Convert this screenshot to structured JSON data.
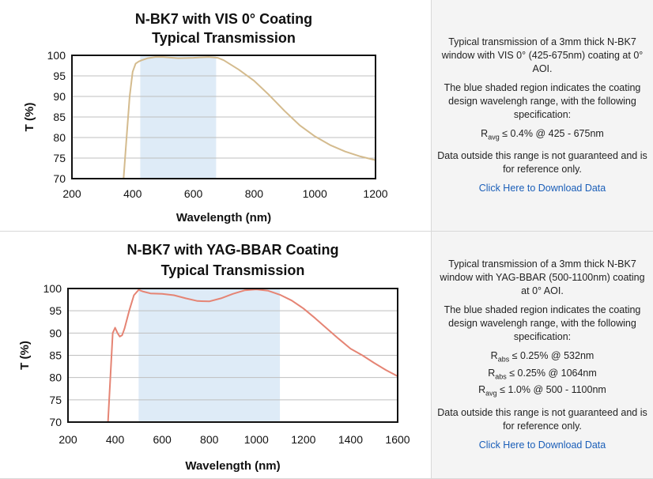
{
  "panels": [
    {
      "chart_data": {
        "type": "line",
        "title": "N-BK7 with VIS 0° Coating",
        "subtitle": "Typical Transmission",
        "xlabel": "Wavelength (nm)",
        "ylabel": "T (%)",
        "xlim": [
          200,
          1200
        ],
        "ylim": [
          70,
          100
        ],
        "xticks": [
          200,
          400,
          600,
          800,
          1000,
          1200
        ],
        "yticks": [
          70,
          75,
          80,
          85,
          90,
          95,
          100
        ],
        "grid": "horizontal",
        "shaded_region": [
          425,
          675
        ],
        "shade_color": "#deebf7",
        "line_color": "#d4bb8e",
        "series": [
          {
            "x": [
              370,
              380,
              390,
              400,
              410,
              420,
              430,
              450,
              475,
              500,
              550,
              600,
              650,
              680,
              700,
              750,
              800,
              850,
              900,
              950,
              1000,
              1050,
              1100,
              1150,
              1200
            ],
            "y": [
              70,
              80,
              90,
              96,
              98,
              98.5,
              98.8,
              99.3,
              99.6,
              99.6,
              99.3,
              99.4,
              99.6,
              99.4,
              98.8,
              96.5,
              93.8,
              90.3,
              86.5,
              83,
              80.3,
              78.2,
              76.6,
              75.4,
              74.5
            ]
          }
        ]
      },
      "description": {
        "intro": "Typical transmission of a 3mm thick N-BK7 window with VIS 0° (425-675nm) coating at 0° AOI.",
        "shaded_note": "The blue shaded region indicates the coating design wavelengh range, with the following specification:",
        "specs": [
          {
            "sym": "R",
            "sub": "avg",
            "text": " ≤ 0.4% @ 425 - 675nm"
          }
        ],
        "disclaimer": "Data outside this range is not guaranteed and is for reference only.",
        "link": "Click Here to Download Data"
      }
    },
    {
      "chart_data": {
        "type": "line",
        "title": "N-BK7 with YAG-BBAR Coating",
        "subtitle": "Typical Transmission",
        "xlabel": "Wavelength (nm)",
        "ylabel": "T (%)",
        "xlim": [
          200,
          1600
        ],
        "ylim": [
          70,
          100
        ],
        "xticks": [
          200,
          400,
          600,
          800,
          1000,
          1200,
          1400,
          1600
        ],
        "yticks": [
          70,
          75,
          80,
          85,
          90,
          95,
          100
        ],
        "grid": "horizontal",
        "shaded_region": [
          500,
          1100
        ],
        "shade_color": "#deebf7",
        "line_color": "#e58474",
        "series": [
          {
            "x": [
              370,
              380,
              390,
              400,
              410,
              420,
              430,
              440,
              460,
              480,
              500,
              520,
              550,
              600,
              650,
              700,
              750,
              800,
              850,
              900,
              950,
              1000,
              1050,
              1100,
              1150,
              1200,
              1250,
              1300,
              1350,
              1400,
              1450,
              1500,
              1550,
              1600
            ],
            "y": [
              70,
              80,
              90,
              91.2,
              90,
              89.2,
              89.5,
              91,
              95,
              98.5,
              99.7,
              99.3,
              98.9,
              98.8,
              98.5,
              97.8,
              97.2,
              97.1,
              97.8,
              98.8,
              99.6,
              99.8,
              99.5,
              98.6,
              97.3,
              95.5,
              93.3,
              91,
              88.7,
              86.5,
              85,
              83.3,
              81.7,
              80.3
            ]
          }
        ]
      },
      "description": {
        "intro": "Typical transmission of a 3mm thick N-BK7 window with YAG-BBAR (500-1100nm) coating at 0° AOI.",
        "shaded_note": "The blue shaded region indicates the coating design wavelengh range, with the following specification:",
        "specs": [
          {
            "sym": "R",
            "sub": "abs",
            "text": " ≤ 0.25% @ 532nm"
          },
          {
            "sym": "R",
            "sub": "abs",
            "text": " ≤ 0.25% @ 1064nm"
          },
          {
            "sym": "R",
            "sub": "avg",
            "text": " ≤ 1.0% @ 500 - 1100nm"
          }
        ],
        "disclaimer": "Data outside this range is not guaranteed and is for reference only.",
        "link": "Click Here to Download Data"
      }
    }
  ]
}
